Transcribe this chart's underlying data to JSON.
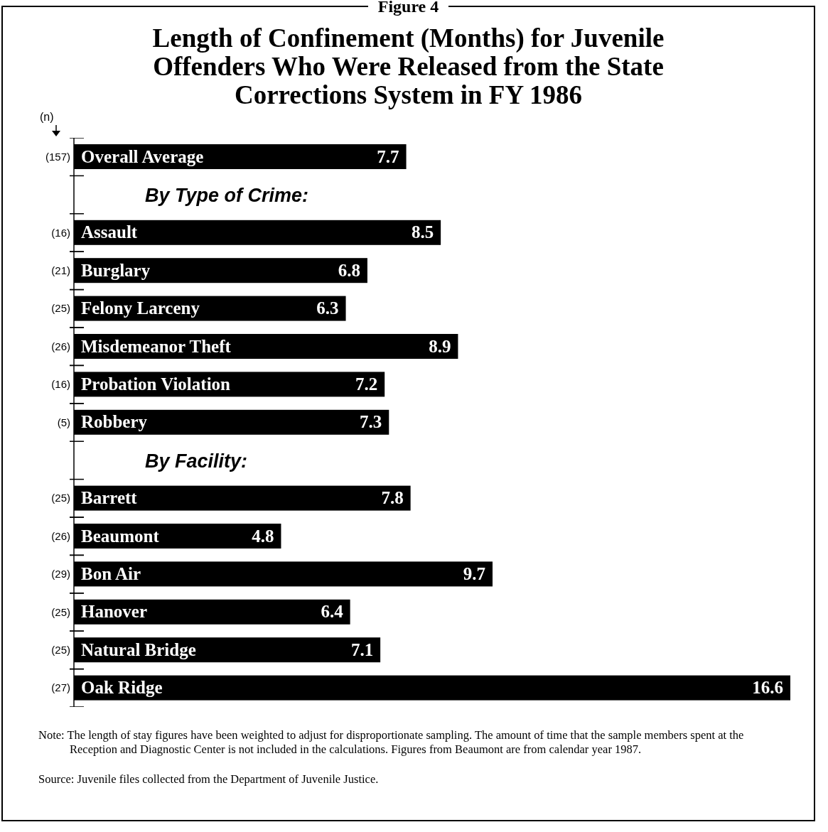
{
  "chart_data": {
    "type": "bar",
    "orientation": "horizontal",
    "title": "Length of Confinement (Months) for Juvenile Offenders Who Were Released from the State Corrections System in FY 1986",
    "ylabel": "(n)",
    "categories": [
      "Overall Average",
      null,
      "Assault",
      "Burglary",
      "Felony Larceny",
      "Misdemeanor Theft",
      "Probation Violation",
      "Robbery",
      null,
      "Barrett",
      "Beaumont",
      "Bon Air",
      "Hanover",
      "Natural Bridge",
      "Oak Ridge"
    ],
    "values": [
      7.7,
      null,
      8.5,
      6.8,
      6.3,
      8.9,
      7.2,
      7.3,
      null,
      7.8,
      4.8,
      9.7,
      6.4,
      7.1,
      16.6
    ],
    "color": "#000000",
    "data_labels": true,
    "annotations": [
      "Figure 4",
      "By Type of Crime:",
      "By Facility:",
      "(157)",
      "(16)",
      "(21)",
      "(25)",
      "(26)",
      "(16)",
      "(5)",
      "(25)",
      "(26)",
      "(29)",
      "(25)",
      "(25)",
      "(27)",
      "Note:  The length of stay figures have been weighted to adjust for disproportionate sampling.  The amount of time that the sample members spent at the Reception and Diagnostic Center is not included in the calculations.  Figures from Beaumont are from calendar year 1987.",
      "Source:  Juvenile files collected from the Department of Juvenile Justice."
    ]
  }
}
